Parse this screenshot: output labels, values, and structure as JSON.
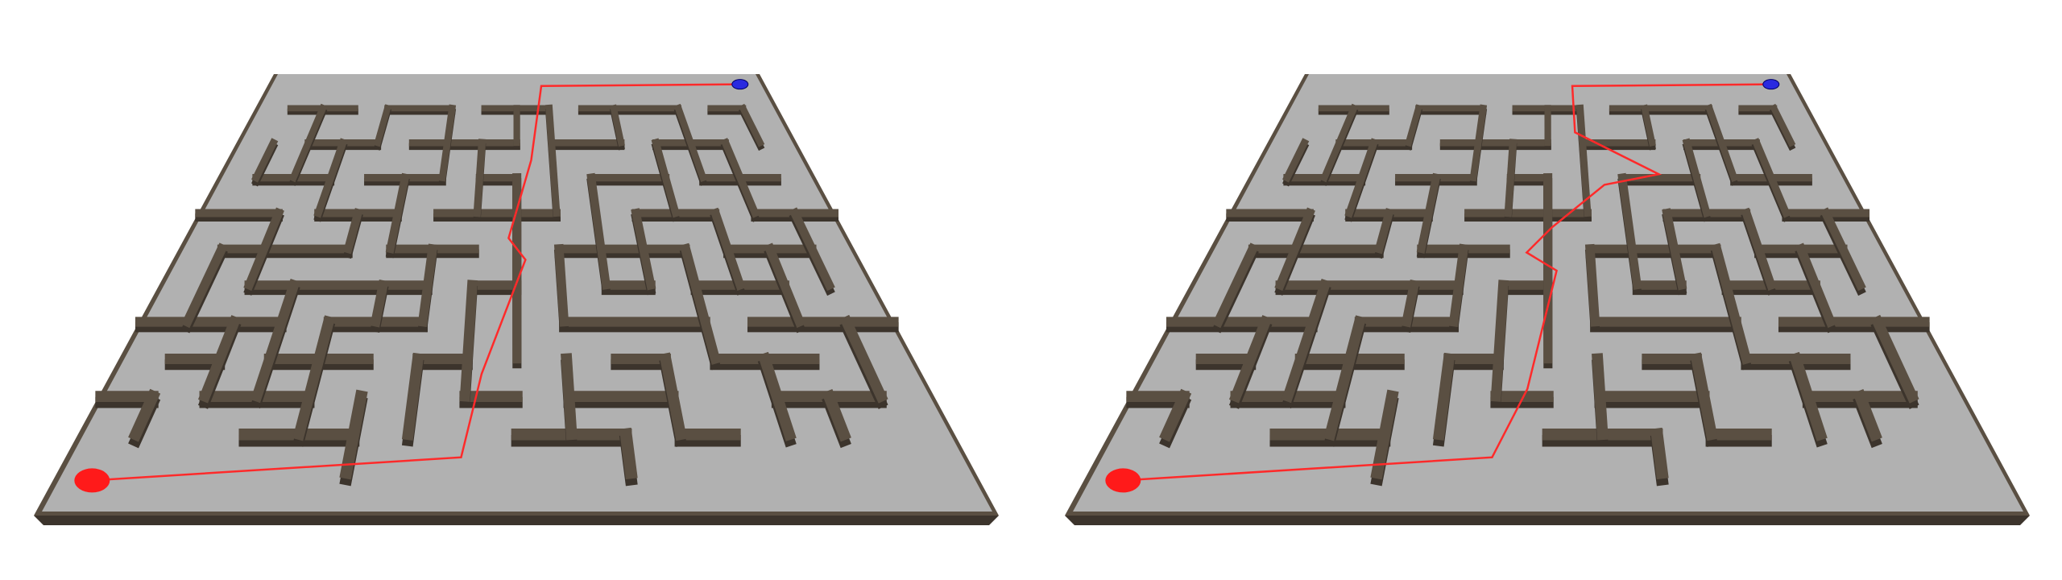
{
  "scene": {
    "description_visible_text": "",
    "panels": [
      {
        "name": "left-maze-panel"
      },
      {
        "name": "right-maze-panel"
      }
    ],
    "colors": {
      "background": "#ffffff",
      "floor": "#b1b1b1",
      "wall_top": "#5a4f42",
      "wall_side": "#3c342c",
      "path": "#ff2a2a",
      "start_marker": "#ff1a1a",
      "goal_marker": "#2a2ae0"
    },
    "icons": {
      "start": "start-marker-icon",
      "goal": "goal-marker-icon"
    }
  }
}
